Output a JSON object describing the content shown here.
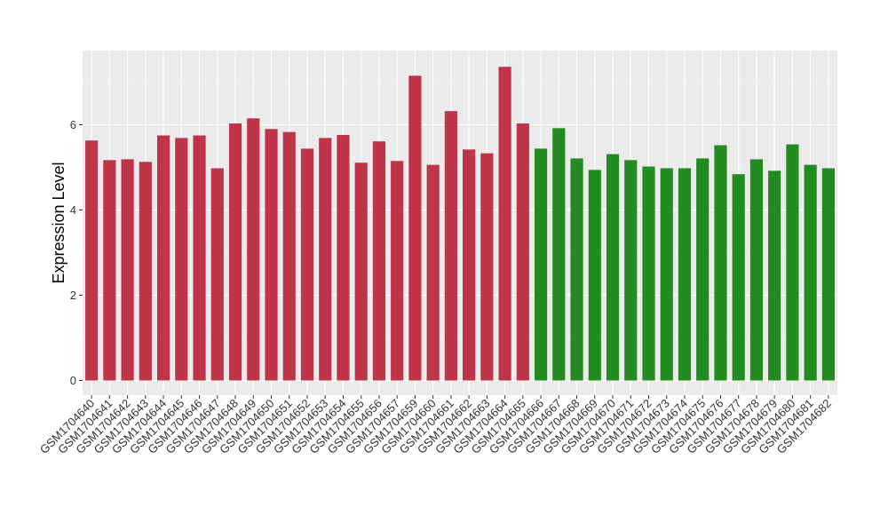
{
  "chart_data": {
    "type": "bar",
    "title": "",
    "xlabel": "",
    "ylabel": "Expression Level",
    "ylim": [
      0,
      7.5
    ],
    "yticks": [
      0,
      2,
      4,
      6
    ],
    "grid": true,
    "legend": "none",
    "categories": [
      "GSM1704640",
      "GSM1704641",
      "GSM1704642",
      "GSM1704643",
      "GSM1704644",
      "GSM1704645",
      "GSM1704646",
      "GSM1704647",
      "GSM1704648",
      "GSM1704649",
      "GSM1704650",
      "GSM1704651",
      "GSM1704652",
      "GSM1704653",
      "GSM1704654",
      "GSM1704655",
      "GSM1704656",
      "GSM1704657",
      "GSM1704659",
      "GSM1704660",
      "GSM1704661",
      "GSM1704662",
      "GSM1704663",
      "GSM1704664",
      "GSM1704665",
      "GSM1704666",
      "GSM1704667",
      "GSM1704668",
      "GSM1704669",
      "GSM1704670",
      "GSM1704671",
      "GSM1704672",
      "GSM1704673",
      "GSM1704674",
      "GSM1704675",
      "GSM1704676",
      "GSM1704677",
      "GSM1704678",
      "GSM1704679",
      "GSM1704680",
      "GSM1704681",
      "GSM1704682"
    ],
    "values": [
      5.63,
      5.17,
      5.19,
      5.13,
      5.75,
      5.69,
      5.75,
      4.98,
      6.03,
      6.15,
      5.9,
      5.83,
      5.44,
      5.69,
      5.76,
      5.11,
      5.61,
      5.15,
      7.15,
      5.06,
      6.32,
      5.42,
      5.33,
      7.36,
      6.03,
      5.44,
      5.92,
      5.21,
      4.94,
      5.31,
      5.17,
      5.02,
      4.98,
      4.98,
      5.21,
      5.52,
      4.84,
      5.19,
      4.92,
      5.54,
      5.06,
      4.98
    ],
    "groups": [
      0,
      0,
      0,
      0,
      0,
      0,
      0,
      0,
      0,
      0,
      0,
      0,
      0,
      0,
      0,
      0,
      0,
      0,
      0,
      0,
      0,
      0,
      0,
      0,
      0,
      1,
      1,
      1,
      1,
      1,
      1,
      1,
      1,
      1,
      1,
      1,
      1,
      1,
      1,
      1,
      1,
      1
    ],
    "colors": [
      "#C0344A",
      "#228B22"
    ],
    "panel_background": "#EBEBEB"
  }
}
